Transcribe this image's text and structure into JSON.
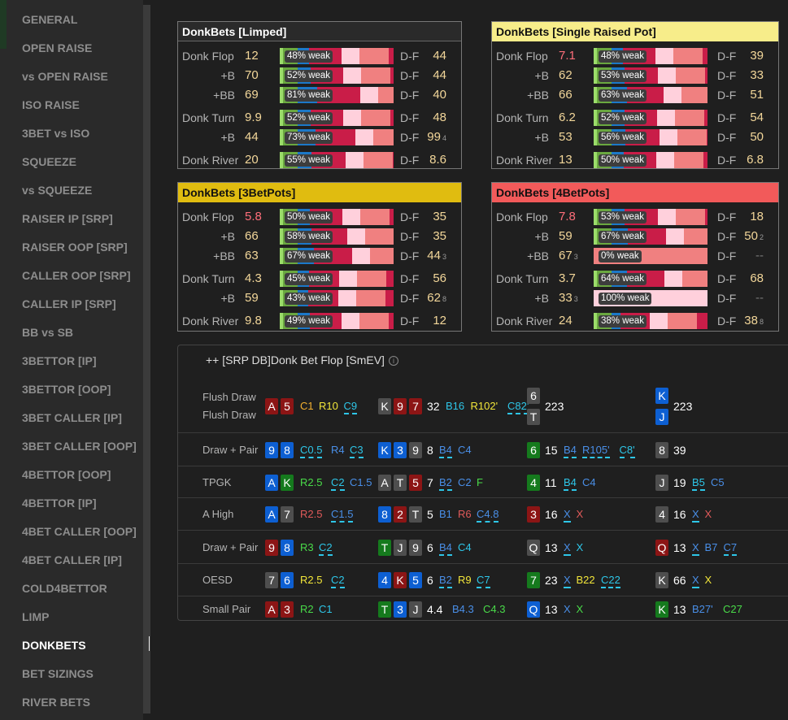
{
  "sidebar": {
    "items": [
      "GENERAL",
      "OPEN RAISE",
      "vs OPEN RAISE",
      "ISO RAISE",
      "3BET vs ISO",
      "SQUEEZE",
      "vs SQUEEZE",
      "RAISER IP [SRP]",
      "RAISER OOP [SRP]",
      "CALLER OOP [SRP]",
      "CALLER IP [SRP]",
      "BB vs SB",
      "3BETTOR [IP]",
      "3BETTOR [OOP]",
      "3BET CALLER [IP]",
      "3BET CALLER [OOP]",
      "4BETTOR [OOP]",
      "4BETTOR [IP]",
      "4BET CALLER [OOP]",
      "4BET CALLER [IP]",
      "COLD4BETTOR",
      "LIMP",
      "DONKBETS",
      "BET SIZINGS",
      "RIVER BETS"
    ],
    "active": "DONKBETS"
  },
  "panels": [
    {
      "title": "DonkBets [Limped]",
      "header_color": "#2a2a2a",
      "title_color": "#ffffff",
      "rows": [
        {
          "label": "Donk Flop",
          "value": "12",
          "red": false,
          "pct": "48% weak",
          "df": "D-F",
          "dfv": "44",
          "sub": ""
        },
        {
          "label": "+B",
          "value": "70",
          "red": false,
          "pct": "52% weak",
          "df": "D-F",
          "dfv": "44",
          "sub": ""
        },
        {
          "label": "+BB",
          "value": "69",
          "red": false,
          "pct": "81% weak",
          "df": "D-F",
          "dfv": "40",
          "sub": ""
        },
        {
          "label": "Donk Turn",
          "value": "9.9",
          "red": false,
          "pct": "52% weak",
          "df": "D-F",
          "dfv": "48",
          "sub": ""
        },
        {
          "label": "+B",
          "value": "44",
          "red": false,
          "pct": "73% weak",
          "df": "D-F",
          "dfv": "99",
          "sub": "4"
        },
        {
          "label": "Donk River",
          "value": "20",
          "red": false,
          "pct": "55% weak",
          "df": "D-F",
          "dfv": "8.6",
          "sub": ""
        }
      ]
    },
    {
      "title": "DonkBets [Single Raised Pot]",
      "header_color": "#f7ed8a",
      "title_color": "#111111",
      "rows": [
        {
          "label": "Donk Flop",
          "value": "7.1",
          "red": true,
          "pct": "48% weak",
          "df": "D-F",
          "dfv": "39",
          "sub": ""
        },
        {
          "label": "+B",
          "value": "62",
          "red": false,
          "pct": "53% weak",
          "df": "D-F",
          "dfv": "33",
          "sub": ""
        },
        {
          "label": "+BB",
          "value": "66",
          "red": false,
          "pct": "63% weak",
          "df": "D-F",
          "dfv": "51",
          "sub": ""
        },
        {
          "label": "Donk Turn",
          "value": "6.2",
          "red": false,
          "pct": "52% weak",
          "df": "D-F",
          "dfv": "54",
          "sub": ""
        },
        {
          "label": "+B",
          "value": "53",
          "red": false,
          "pct": "56% weak",
          "df": "D-F",
          "dfv": "50",
          "sub": ""
        },
        {
          "label": "Donk River",
          "value": "13",
          "red": false,
          "pct": "50% weak",
          "df": "D-F",
          "dfv": "6.8",
          "sub": ""
        }
      ]
    },
    {
      "title": "DonkBets [3BetPots]",
      "header_color": "#e0bc10",
      "title_color": "#111111",
      "rows": [
        {
          "label": "Donk Flop",
          "value": "5.8",
          "red": true,
          "pct": "50% weak",
          "df": "D-F",
          "dfv": "35",
          "sub": ""
        },
        {
          "label": "+B",
          "value": "66",
          "red": false,
          "pct": "58% weak",
          "df": "D-F",
          "dfv": "35",
          "sub": ""
        },
        {
          "label": "+BB",
          "value": "63",
          "red": false,
          "pct": "67% weak",
          "df": "D-F",
          "dfv": "44",
          "sub": "3"
        },
        {
          "label": "Donk Turn",
          "value": "4.3",
          "red": false,
          "pct": "45% weak",
          "df": "D-F",
          "dfv": "56",
          "sub": ""
        },
        {
          "label": "+B",
          "value": "59",
          "red": false,
          "pct": "43% weak",
          "df": "D-F",
          "dfv": "62",
          "sub": "8"
        },
        {
          "label": "Donk River",
          "value": "9.8",
          "red": false,
          "pct": "49% weak",
          "df": "D-F",
          "dfv": "12",
          "sub": ""
        }
      ]
    },
    {
      "title": "DonkBets [4BetPots]",
      "header_color": "#f25a5a",
      "title_color": "#111111",
      "rows": [
        {
          "label": "Donk Flop",
          "value": "7.8",
          "red": true,
          "pct": "53% weak",
          "df": "D-F",
          "dfv": "18",
          "sub": ""
        },
        {
          "label": "+B",
          "value": "59",
          "red": false,
          "pct": "67% weak",
          "df": "D-F",
          "dfv": "50",
          "sub": "2"
        },
        {
          "label": "+BB",
          "value": "67",
          "red": false,
          "pct": "0% weak",
          "df": "D-F",
          "dfv": "--",
          "sub": "",
          "valsub": "3"
        },
        {
          "label": "Donk Turn",
          "value": "3.7",
          "red": false,
          "pct": "64% weak",
          "df": "D-F",
          "dfv": "68",
          "sub": ""
        },
        {
          "label": "+B",
          "value": "33",
          "red": false,
          "pct": "100% weak",
          "df": "D-F",
          "dfv": "--",
          "sub": "",
          "valsub": "3"
        },
        {
          "label": "Donk River",
          "value": "24",
          "red": false,
          "pct": "38% weak",
          "df": "D-F",
          "dfv": "38",
          "sub": "8"
        }
      ]
    }
  ],
  "table": {
    "title": "++ [SRP DB]Donk Bet Flop [SmEV]",
    "rows": [
      {
        "hands": [
          "Flush Draw",
          "Flush Draw"
        ],
        "c1": {
          "cards": [
            [
              "A",
              "r"
            ],
            [
              "5",
              "r"
            ]
          ],
          "num": "",
          "acts": [
            [
              "C1",
              "ao",
              false
            ],
            [
              "R10",
              "ay",
              false
            ],
            [
              "C9",
              "ac",
              true
            ]
          ]
        },
        "c2": {
          "cards": [
            [
              "K",
              "k"
            ],
            [
              "9",
              "r"
            ],
            [
              "7",
              "r"
            ]
          ],
          "num": "32",
          "acts": [
            [
              "B16",
              "ac",
              false
            ],
            [
              "R102'",
              "ay",
              false
            ],
            [
              "C82'",
              "ac",
              true
            ]
          ]
        },
        "c3": {
          "cards": [
            [
              "6",
              "k"
            ],
            [
              "T",
              "k"
            ]
          ],
          "num": "223",
          "acts": []
        },
        "c4": {
          "cards": [
            [
              "K",
              "b"
            ],
            [
              "J",
              "b"
            ]
          ],
          "num": "223",
          "acts": []
        }
      },
      {
        "hands": [
          "Draw + Pair"
        ],
        "c1": {
          "cards": [
            [
              "9",
              "b"
            ],
            [
              "8",
              "b"
            ]
          ],
          "num": "",
          "acts": [
            [
              "C0.5",
              "ac",
              true
            ],
            [
              "R4",
              "ab",
              false
            ],
            [
              "C3",
              "ac",
              true
            ]
          ]
        },
        "c2": {
          "cards": [
            [
              "K",
              "b"
            ],
            [
              "3",
              "b"
            ],
            [
              "9",
              "k"
            ]
          ],
          "num": "8",
          "acts": [
            [
              "B4",
              "ab",
              true
            ],
            [
              "C4",
              "ab",
              false
            ]
          ]
        },
        "c3": {
          "cards": [
            [
              "6",
              "g"
            ]
          ],
          "num": "15",
          "acts": [
            [
              "B4",
              "ab",
              true
            ],
            [
              "R105'",
              "ab",
              true
            ],
            [
              "C8'",
              "ac",
              true
            ]
          ]
        },
        "c4": {
          "cards": [
            [
              "8",
              "k"
            ]
          ],
          "num": "39",
          "acts": []
        }
      },
      {
        "hands": [
          "TPGK"
        ],
        "c1": {
          "cards": [
            [
              "A",
              "b"
            ],
            [
              "K",
              "g"
            ]
          ],
          "num": "",
          "acts": [
            [
              "R2.5",
              "ag",
              false
            ],
            [
              "C2",
              "ac",
              true
            ],
            [
              "C1.5",
              "ab",
              false
            ]
          ]
        },
        "c2": {
          "cards": [
            [
              "A",
              "k"
            ],
            [
              "T",
              "k"
            ],
            [
              "5",
              "r"
            ]
          ],
          "num": "7",
          "acts": [
            [
              "B2",
              "ab",
              true
            ],
            [
              "C2",
              "ab",
              false
            ],
            [
              "F",
              "ag",
              false
            ]
          ]
        },
        "c3": {
          "cards": [
            [
              "4",
              "g"
            ]
          ],
          "num": "11",
          "acts": [
            [
              "B4",
              "ac",
              true
            ],
            [
              "C4",
              "ab",
              false
            ]
          ]
        },
        "c4": {
          "cards": [
            [
              "J",
              "k"
            ]
          ],
          "num": "19",
          "acts": [
            [
              "B5",
              "ac",
              true
            ],
            [
              "C5",
              "ab",
              false
            ]
          ]
        }
      },
      {
        "hands": [
          "A High"
        ],
        "c1": {
          "cards": [
            [
              "A",
              "b"
            ],
            [
              "7",
              "k"
            ]
          ],
          "num": "",
          "acts": [
            [
              "R2.5",
              "ar",
              false
            ],
            [
              "C1.5",
              "ab",
              true
            ]
          ]
        },
        "c2": {
          "cards": [
            [
              "8",
              "b"
            ],
            [
              "2",
              "r"
            ],
            [
              "T",
              "k"
            ]
          ],
          "num": "5",
          "acts": [
            [
              "B1",
              "ab",
              false
            ],
            [
              "R6",
              "ar",
              false
            ],
            [
              "C4.8",
              "ab",
              true
            ]
          ]
        },
        "c3": {
          "cards": [
            [
              "3",
              "r"
            ]
          ],
          "num": "16",
          "acts": [
            [
              "X",
              "ax",
              true
            ],
            [
              "X",
              "ar",
              false
            ]
          ]
        },
        "c4": {
          "cards": [
            [
              "4",
              "k"
            ]
          ],
          "num": "16",
          "acts": [
            [
              "X",
              "ax",
              true
            ],
            [
              "X",
              "ar",
              false
            ]
          ]
        }
      },
      {
        "hands": [
          "Draw + Pair"
        ],
        "c1": {
          "cards": [
            [
              "9",
              "r"
            ],
            [
              "8",
              "b"
            ]
          ],
          "num": "",
          "acts": [
            [
              "R3",
              "ag",
              false
            ],
            [
              "C2",
              "ac",
              true
            ]
          ]
        },
        "c2": {
          "cards": [
            [
              "T",
              "g"
            ],
            [
              "J",
              "k"
            ],
            [
              "9",
              "k"
            ]
          ],
          "num": "6",
          "acts": [
            [
              "B4",
              "ab",
              true
            ],
            [
              "C4",
              "ac",
              false
            ]
          ]
        },
        "c3": {
          "cards": [
            [
              "Q",
              "k"
            ]
          ],
          "num": "13",
          "acts": [
            [
              "X",
              "ax",
              true
            ],
            [
              "X",
              "ac",
              false
            ]
          ]
        },
        "c4": {
          "cards": [
            [
              "Q",
              "r"
            ]
          ],
          "num": "13",
          "acts": [
            [
              "X",
              "ax",
              true
            ],
            [
              "B7",
              "ab",
              false
            ],
            [
              "C7",
              "ab",
              true
            ]
          ]
        }
      },
      {
        "hands": [
          "OESD"
        ],
        "c1": {
          "cards": [
            [
              "7",
              "k"
            ],
            [
              "6",
              "b"
            ]
          ],
          "num": "",
          "acts": [
            [
              "R2.5",
              "ay",
              false
            ],
            [
              "C2",
              "ac",
              true
            ]
          ]
        },
        "c2": {
          "cards": [
            [
              "4",
              "b"
            ],
            [
              "K",
              "r"
            ],
            [
              "5",
              "b"
            ]
          ],
          "num": "6",
          "acts": [
            [
              "B2",
              "ab",
              true
            ],
            [
              "R9",
              "ay",
              false
            ],
            [
              "C7",
              "ac",
              true
            ]
          ]
        },
        "c3": {
          "cards": [
            [
              "7",
              "g"
            ]
          ],
          "num": "23",
          "acts": [
            [
              "X",
              "ax",
              true
            ],
            [
              "B22",
              "ay",
              false
            ],
            [
              "C22",
              "ac",
              true
            ]
          ]
        },
        "c4": {
          "cards": [
            [
              "K",
              "k"
            ]
          ],
          "num": "66",
          "acts": [
            [
              "X",
              "ax",
              true
            ],
            [
              "X",
              "ay",
              false
            ]
          ]
        }
      },
      {
        "hands": [
          "Small Pair"
        ],
        "c1": {
          "cards": [
            [
              "A",
              "r"
            ],
            [
              "3",
              "r"
            ]
          ],
          "num": "",
          "acts": [
            [
              "R2",
              "ag",
              false
            ],
            [
              "C1",
              "ac",
              false
            ]
          ]
        },
        "c2": {
          "cards": [
            [
              "T",
              "g"
            ],
            [
              "3",
              "b"
            ],
            [
              "J",
              "k"
            ]
          ],
          "num": "4.4",
          "acts": [
            [
              "B4.3",
              "ab",
              false
            ],
            [
              "C4.3",
              "ag",
              false
            ]
          ]
        },
        "c3": {
          "cards": [
            [
              "Q",
              "b"
            ]
          ],
          "num": "13",
          "acts": [
            [
              "X",
              "ax",
              false
            ],
            [
              "X",
              "ag",
              false
            ]
          ]
        },
        "c4": {
          "cards": [
            [
              "K",
              "g"
            ]
          ],
          "num": "13",
          "acts": [
            [
              "B27'",
              "ab",
              false
            ],
            [
              "C27",
              "ag",
              false
            ]
          ]
        }
      }
    ]
  }
}
